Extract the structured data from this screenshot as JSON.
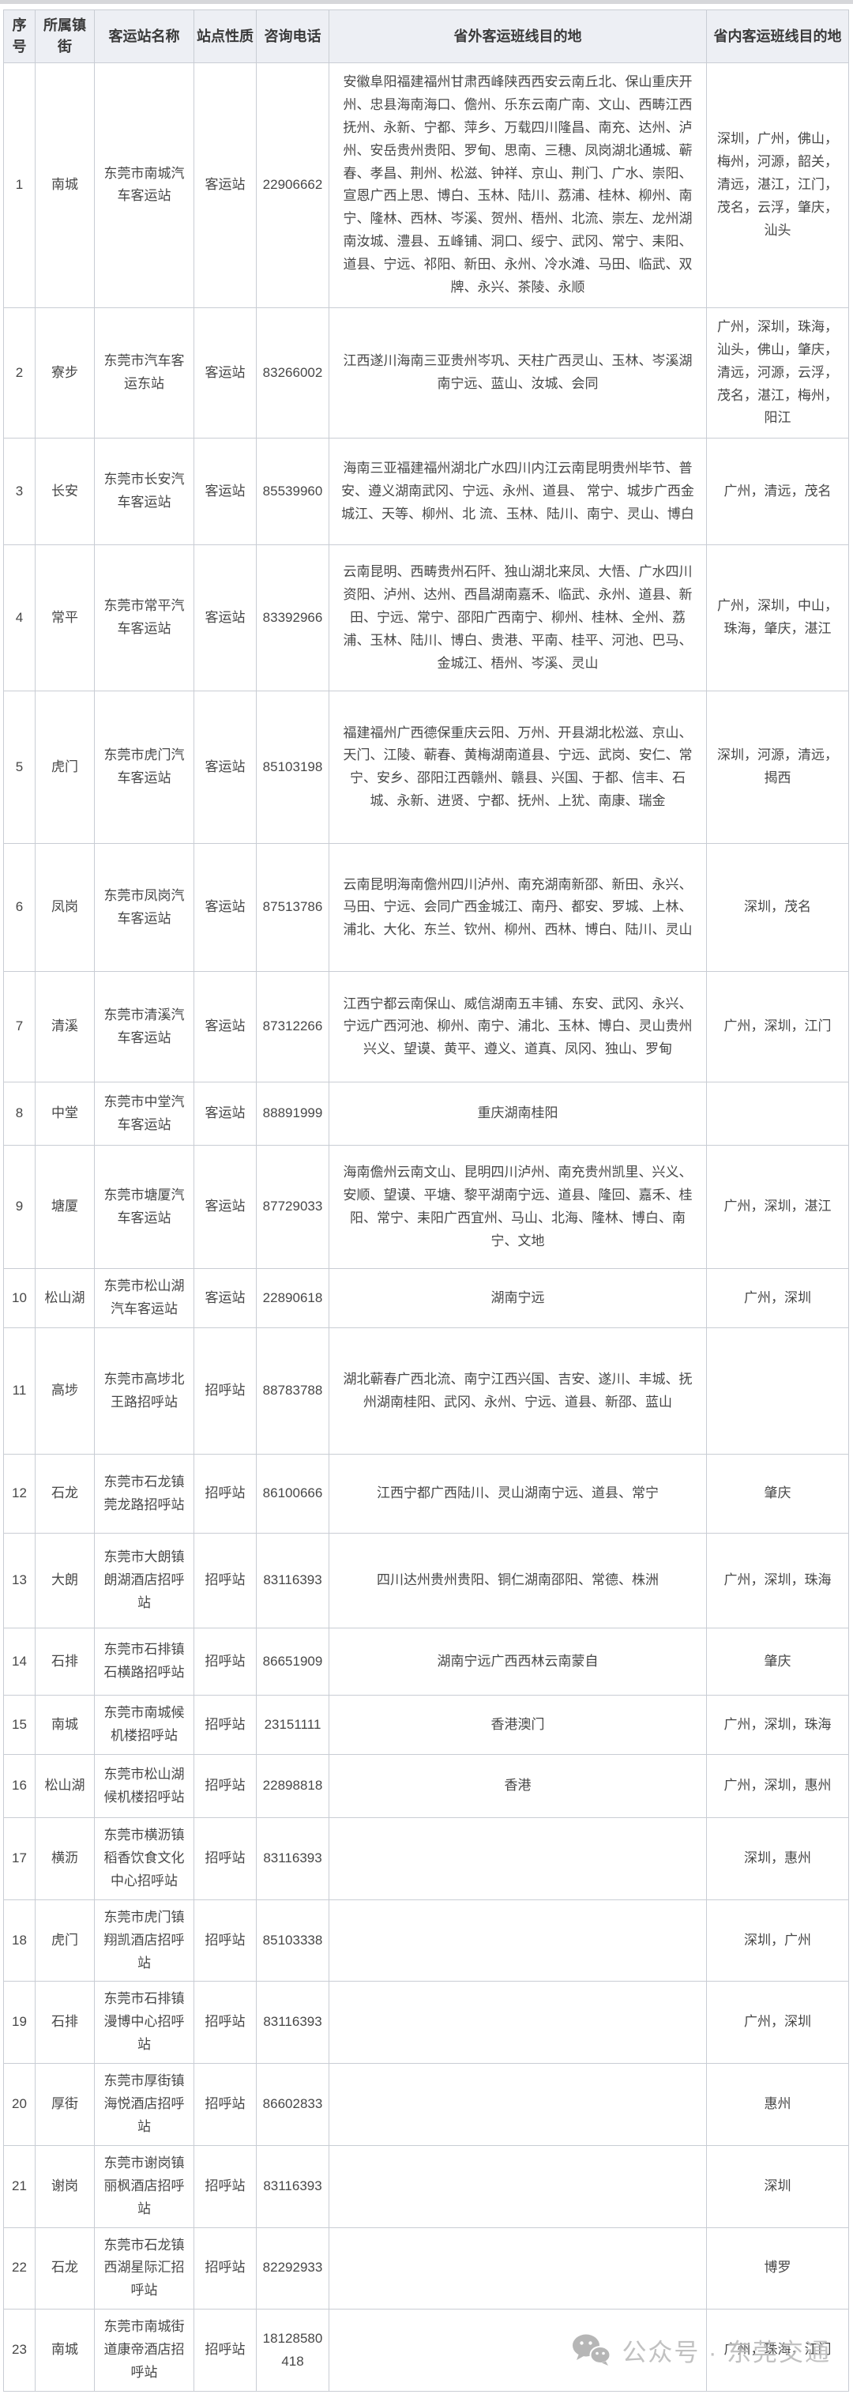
{
  "header": {
    "columns": [
      "序号",
      "所属镇街",
      "客运站名称",
      "站点性质",
      "咨询电话",
      "省外客运班线目的地",
      "省内客运班线目的地"
    ]
  },
  "rows": [
    {
      "no": "1",
      "town": "南城",
      "station": "东莞市南城汽车客运站",
      "type": "客运站",
      "phone": "22906662",
      "outside": "安徽阜阳福建福州甘肃西峰陕西西安云南丘北、保山重庆开州、忠县海南海口、儋州、乐东云南广南、文山、西畴江西抚州、永新、宁都、萍乡、万载四川隆昌、南充、达州、泸州、安岳贵州贵阳、罗甸、思南、三穗、凤岗湖北通城、蕲春、孝昌、荆州、松滋、钟祥、京山、荆门、广水、崇阳、宣恩广西上思、博白、玉林、陆川、荔浦、桂林、柳州、南宁、隆林、西林、岑溪、贺州、梧州、北流、崇左、龙州湖南汝城、澧县、五峰铺、洞口、绥宁、武冈、常宁、耒阳、道县、宁远、祁阳、新田、永州、冷水滩、马田、临武、双牌、永兴、茶陵、永顺",
      "inside": "深圳，广州，佛山，梅州，河源，韶关，清远，湛江，江门，茂名，云浮，肇庆，汕头"
    },
    {
      "no": "2",
      "town": "寮步",
      "station": "东莞市汽车客运东站",
      "type": "客运站",
      "phone": "83266002",
      "outside": "江西遂川海南三亚贵州岑巩、天柱广西灵山、玉林、岑溪湖南宁远、蓝山、汝城、会同",
      "inside": "广州，深圳，珠海，汕头，佛山，肇庆，清远，河源，云浮，茂名，湛江，梅州，阳江"
    },
    {
      "no": "3",
      "town": "长安",
      "station": "东莞市长安汽车客运站",
      "type": "客运站",
      "phone": "85539960",
      "outside": "海南三亚福建福州湖北广水四川内江云南昆明贵州毕节、普安、遵义湖南武冈、宁远、永州、道县、  常宁、城步广西金城江、天等、柳州、北 流、玉林、陆川、南宁、灵山、博白",
      "inside": "广州，清远，茂名"
    },
    {
      "no": "4",
      "town": "常平",
      "station": "东莞市常平汽车客运站",
      "type": "客运站",
      "phone": "83392966",
      "outside": "云南昆明、西畴贵州石阡、独山湖北来凤、大悟、广水四川资阳、泸州、达州、西昌湖南嘉禾、临武、永州、道县、新田、宁远、常宁、邵阳广西南宁、柳州、桂林、全州、荔浦、玉林、陆川、博白、贵港、平南、桂平、河池、巴马、金城江、梧州、岑溪、灵山",
      "inside": "广州，深圳，中山，珠海，肇庆，湛江"
    },
    {
      "no": "5",
      "town": "虎门",
      "station": "东莞市虎门汽车客运站",
      "type": "客运站",
      "phone": "85103198",
      "outside": "福建福州广西德保重庆云阳、万州、开县湖北松滋、京山、天门、江陵、蕲春、黄梅湖南道县、宁远、武岗、安仁、常宁、安乡、邵阳江西赣州、赣县、兴国、于都、信丰、石城、永新、进贤、宁都、抚州、上犹、南康、瑞金",
      "inside": "深圳，河源，清远，揭西"
    },
    {
      "no": "6",
      "town": "凤岗",
      "station": "东莞市凤岗汽车客运站",
      "type": "客运站",
      "phone": "87513786",
      "outside": "云南昆明海南儋州四川泸州、南充湖南新邵、新田、永兴、马田、宁远、会同广西金城江、南丹、都安、罗城、上林、浦北、大化、东兰、钦州、柳州、西林、博白、陆川、灵山",
      "inside": "深圳，茂名"
    },
    {
      "no": "7",
      "town": "清溪",
      "station": "东莞市清溪汽车客运站",
      "type": "客运站",
      "phone": "87312266",
      "outside": "江西宁都云南保山、威信湖南五丰铺、东安、武冈、永兴、宁远广西河池、柳州、南宁、浦北、玉林、博白、灵山贵州兴义、望谟、黄平、遵义、道真、凤冈、独山、罗甸",
      "inside": "广州，深圳，江门"
    },
    {
      "no": "8",
      "town": "中堂",
      "station": "东莞市中堂汽车客运站",
      "type": "客运站",
      "phone": "88891999",
      "outside": "重庆湖南桂阳",
      "inside": ""
    },
    {
      "no": "9",
      "town": "塘厦",
      "station": "东莞市塘厦汽车客运站",
      "type": "客运站",
      "phone": "87729033",
      "outside": "海南儋州云南文山、昆明四川泸州、南充贵州凯里、兴义、安顺、望谟、平塘、黎平湖南宁远、道县、隆回、嘉禾、桂阳、常宁、耒阳广西宜州、马山、北海、隆林、博白、南宁、文地",
      "inside": "广州，深圳，湛江"
    },
    {
      "no": "10",
      "town": "松山湖",
      "station": "东莞市松山湖汽车客运站",
      "type": "客运站",
      "phone": "22890618",
      "outside": "湖南宁远",
      "inside": "广州，深圳"
    },
    {
      "no": "11",
      "town": "高埗",
      "station": "东莞市高埗北王路招呼站",
      "type": "招呼站",
      "phone": "88783788",
      "outside": "湖北蕲春广西北流、南宁江西兴国、吉安、遂川、丰城、抚州湖南桂阳、武冈、永州、宁远、道县、新邵、蓝山",
      "inside": ""
    },
    {
      "no": "12",
      "town": "石龙",
      "station": "东莞市石龙镇莞龙路招呼站",
      "type": "招呼站",
      "phone": "86100666",
      "outside": "江西宁都广西陆川、灵山湖南宁远、道县、常宁",
      "inside": "肇庆"
    },
    {
      "no": "13",
      "town": "大朗",
      "station": "东莞市大朗镇朗湖酒店招呼站",
      "type": "招呼站",
      "phone": "83116393",
      "outside": "四川达州贵州贵阳、铜仁湖南邵阳、常德、株洲",
      "inside": "广州，深圳，珠海"
    },
    {
      "no": "14",
      "town": "石排",
      "station": "东莞市石排镇石横路招呼站",
      "type": "招呼站",
      "phone": "86651909",
      "outside": "湖南宁远广西西林云南蒙自",
      "inside": "肇庆"
    },
    {
      "no": "15",
      "town": "南城",
      "station": "东莞市南城候机楼招呼站",
      "type": "招呼站",
      "phone": "23151111",
      "outside": "香港澳门",
      "inside": "广州，深圳，珠海"
    },
    {
      "no": "16",
      "town": "松山湖",
      "station": "东莞市松山湖候机楼招呼站",
      "type": "招呼站",
      "phone": "22898818",
      "outside": "香港",
      "inside": "广州，深圳，惠州"
    },
    {
      "no": "17",
      "town": "横沥",
      "station": "东莞市横沥镇稻香饮食文化中心招呼站",
      "type": "招呼站",
      "phone": "83116393",
      "outside": "",
      "inside": "深圳，惠州"
    },
    {
      "no": "18",
      "town": "虎门",
      "station": "东莞市虎门镇翔凯酒店招呼站",
      "type": "招呼站",
      "phone": "85103338",
      "outside": "",
      "inside": "深圳，广州"
    },
    {
      "no": "19",
      "town": "石排",
      "station": "东莞市石排镇漫博中心招呼站",
      "type": "招呼站",
      "phone": "83116393",
      "outside": "",
      "inside": "广州，深圳"
    },
    {
      "no": "20",
      "town": "厚街",
      "station": "东莞市厚街镇海悦酒店招呼站",
      "type": "招呼站",
      "phone": "86602833",
      "outside": "",
      "inside": "惠州"
    },
    {
      "no": "21",
      "town": "谢岗",
      "station": "东莞市谢岗镇丽枫酒店招呼站",
      "type": "招呼站",
      "phone": "83116393",
      "outside": "",
      "inside": "深圳"
    },
    {
      "no": "22",
      "town": "石龙",
      "station": "东莞市石龙镇西湖星际汇招呼站",
      "type": "招呼站",
      "phone": "82292933",
      "outside": "",
      "inside": "博罗"
    },
    {
      "no": "23",
      "town": "南城",
      "station": "东莞市南城街道康帝酒店招呼站",
      "type": "招呼站",
      "phone": "18128580418",
      "outside": "",
      "inside": "广州，珠海，江门"
    }
  ],
  "watermark": {
    "icon": "wechat-icon",
    "text": "公众号 · 东莞交通",
    "color": "#bcbcbc"
  },
  "colors": {
    "header_bg": "#edeff4",
    "border": "#c9cdd4",
    "text": "#474747",
    "top_strip": "#d6d7da"
  }
}
